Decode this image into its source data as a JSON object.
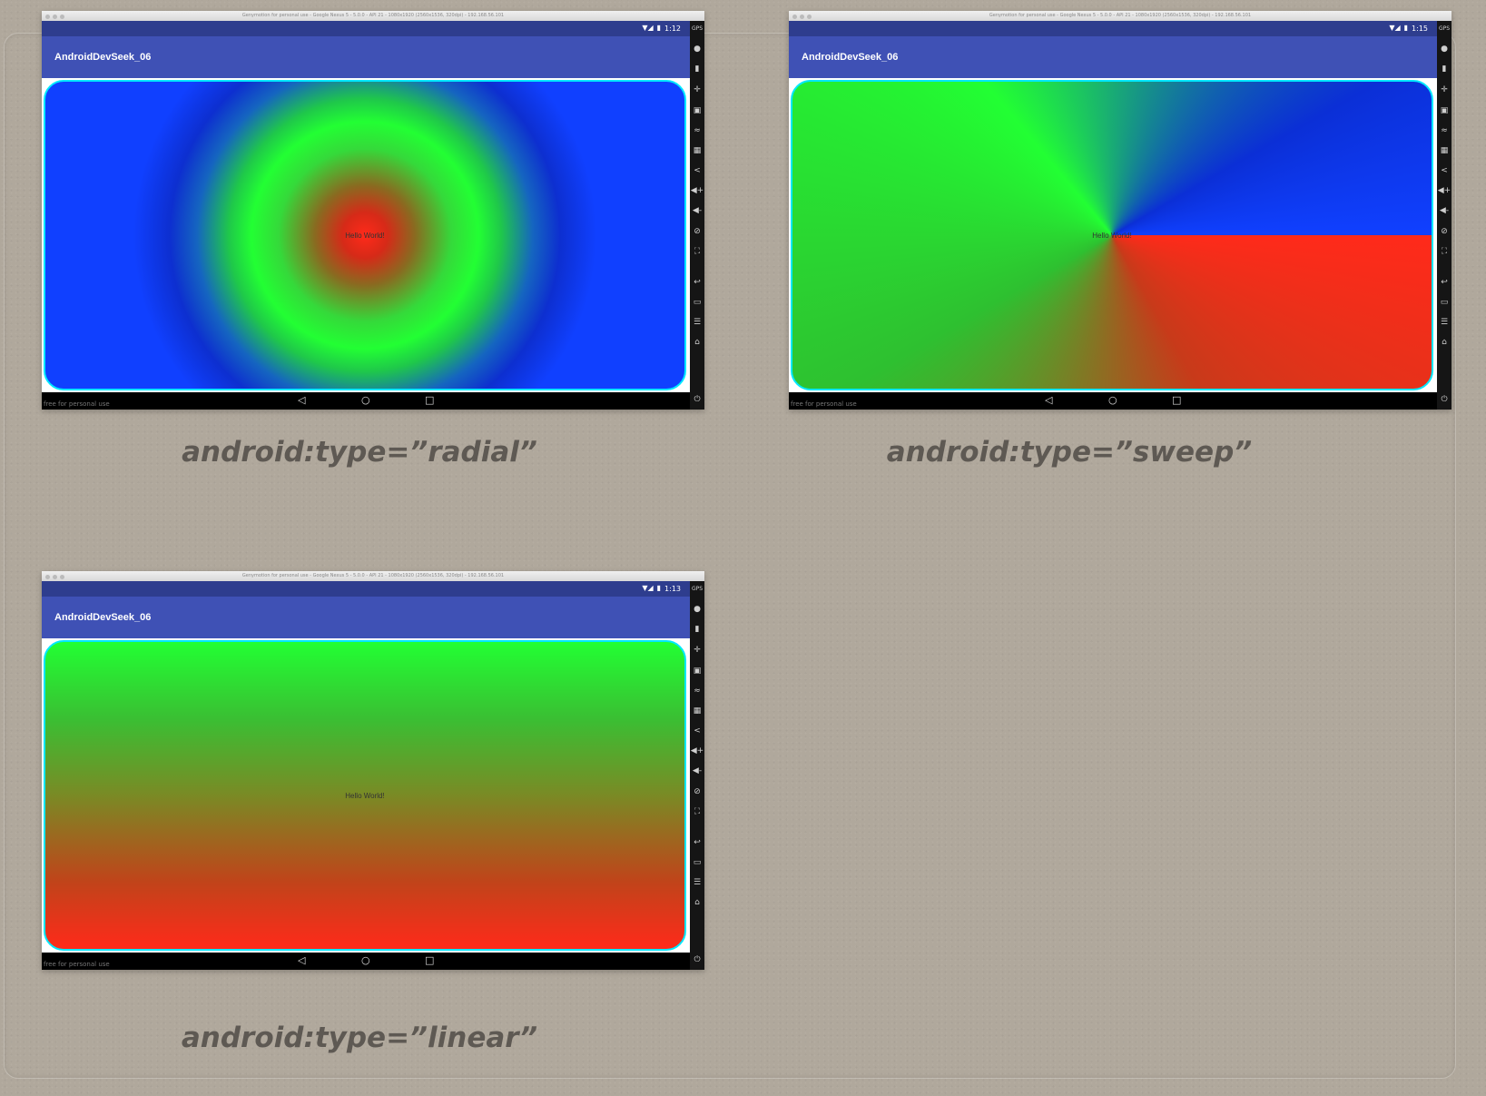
{
  "emulator": {
    "app_title": "AndroidDevSeek_06",
    "hello_text": "Hello World!",
    "titlebar_text": "Genymotion for personal use - Google Nexus 5 - 5.0.0 - API 21 - 1080x1920 (2560x1536, 320dpi) - 192.168.56.101",
    "watermark": "free for personal use"
  },
  "nav": {
    "back": "◁",
    "home": "○",
    "recents": "□"
  },
  "sidebar_icons": [
    "GPS",
    "●",
    "▮",
    "✛",
    "▣",
    "≈",
    "▦",
    "<",
    "◀+",
    "◀-",
    "⊘",
    "⛶",
    "↩",
    "▭",
    "☰",
    "⌂",
    "⏻"
  ],
  "screens": [
    {
      "type": "radial",
      "time": "1:12",
      "caption": "android:type=”radial”"
    },
    {
      "type": "sweep",
      "time": "1:15",
      "caption": "android:type=”sweep”"
    },
    {
      "type": "linear",
      "time": "1:13",
      "caption": "android:type=”linear”"
    }
  ],
  "colors": {
    "red": "#ff2a1a",
    "green": "#22ff33",
    "blue": "#1040ff",
    "accent": "#3f51b5",
    "border": "#00e8ff"
  }
}
